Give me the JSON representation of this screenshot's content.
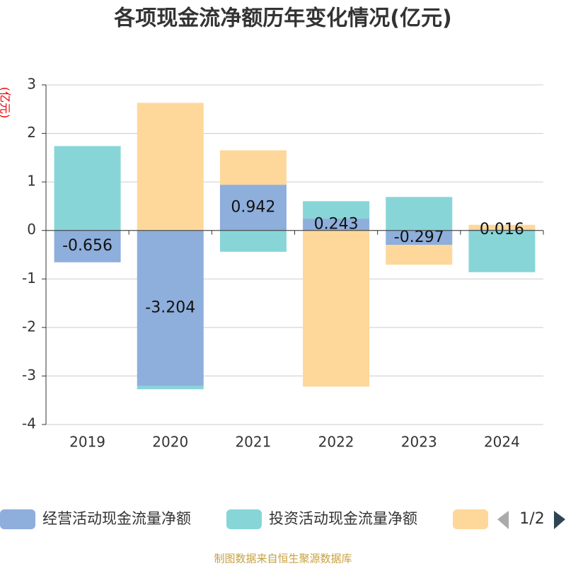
{
  "chart_data": {
    "type": "stacked_bar",
    "title": "各项现金流净额历年变化情况(亿元)",
    "y_label": "(亿元)",
    "categories": [
      "2019",
      "2020",
      "2021",
      "2022",
      "2023",
      "2024"
    ],
    "series": [
      {
        "name": "经营活动现金流量净额",
        "color": "#8eaedb",
        "values": [
          -0.656,
          -3.204,
          0.942,
          0.243,
          -0.297,
          0.016
        ],
        "show_labels": true
      },
      {
        "name": "投资活动现金流量净额",
        "color": "#88d5d8",
        "values": [
          1.74,
          -0.07,
          -0.44,
          0.36,
          0.69,
          -0.86
        ],
        "show_labels": false
      },
      {
        "color": "#fdd89a",
        "values": [
          null,
          2.63,
          0.71,
          -3.22,
          -0.41,
          0.1
        ],
        "show_labels": false
      }
    ],
    "ylim": [
      -4,
      3
    ],
    "yticks": [
      -4,
      -3,
      -2,
      -1,
      0,
      1,
      2,
      3
    ],
    "grid": true,
    "legend_page": "1/2",
    "source": "制图数据来自恒生聚源数据库"
  }
}
